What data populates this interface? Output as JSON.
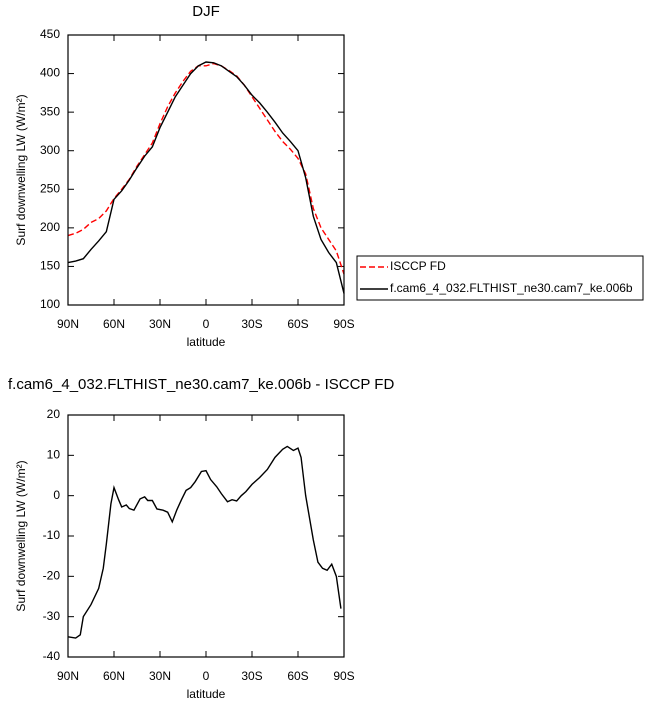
{
  "chart_data": [
    {
      "type": "line",
      "title": "DJF",
      "xlabel": "latitude",
      "ylabel": "Surf downwelling LW (W/m²)",
      "x": [
        90,
        85,
        80,
        75,
        70,
        65,
        60,
        55,
        50,
        45,
        40,
        35,
        30,
        25,
        20,
        15,
        10,
        5,
        0,
        -5,
        -10,
        -15,
        -20,
        -25,
        -30,
        -35,
        -40,
        -45,
        -50,
        -55,
        -60,
        -65,
        -70,
        -75,
        -80,
        -85,
        -90
      ],
      "series": [
        {
          "name": "ISCCP FD",
          "color": "#ff0000",
          "dash": true,
          "values": [
            190,
            193,
            198,
            207,
            212,
            222,
            238,
            250,
            263,
            280,
            295,
            310,
            335,
            357,
            375,
            390,
            403,
            410,
            410,
            413,
            410,
            404,
            397,
            385,
            370,
            355,
            340,
            325,
            312,
            302,
            290,
            270,
            225,
            200,
            185,
            170,
            140
          ]
        },
        {
          "name": "f.cam6_4_032.FLTHIST_ne30.cam7_ke.006b",
          "color": "#000000",
          "dash": false,
          "values": [
            155,
            157,
            160,
            172,
            183,
            195,
            237,
            248,
            262,
            278,
            293,
            305,
            330,
            350,
            370,
            385,
            400,
            410,
            415,
            414,
            410,
            403,
            396,
            385,
            372,
            362,
            350,
            337,
            323,
            312,
            300,
            265,
            215,
            185,
            168,
            155,
            115
          ]
        }
      ],
      "xlim": [
        90,
        -90
      ],
      "xticks": [
        {
          "value": 90,
          "label": "90N"
        },
        {
          "value": 60,
          "label": "60N"
        },
        {
          "value": 30,
          "label": "30N"
        },
        0,
        {
          "value": -30,
          "label": "30S"
        },
        {
          "value": -60,
          "label": "60S"
        },
        {
          "value": -90,
          "label": "90S"
        }
      ],
      "ylim": [
        100,
        450
      ],
      "yticks": [
        100,
        150,
        200,
        250,
        300,
        350,
        400,
        450
      ],
      "legend": "right"
    },
    {
      "type": "line",
      "title": "f.cam6_4_032.FLTHIST_ne30.cam7_ke.006b - ISCCP FD",
      "xlabel": "latitude",
      "ylabel": "Surf downwelling LW (W/m²)",
      "x": [
        90,
        85,
        82,
        80,
        75,
        70,
        67,
        65,
        62,
        60,
        57,
        55,
        52,
        50,
        47,
        43,
        40,
        38,
        35,
        32,
        28,
        25,
        22,
        19,
        16,
        13,
        10,
        7,
        3,
        0,
        -3,
        -7,
        -10,
        -14,
        -17,
        -20,
        -23,
        -26,
        -30,
        -35,
        -40,
        -45,
        -50,
        -53,
        -57,
        -60,
        -62,
        -65,
        -70,
        -73,
        -76,
        -79,
        -82,
        -85,
        -88
      ],
      "series": [
        {
          "name": "f.cam6_4_032.FLTHIST_ne30.cam7_ke.006b - ISCCP FD",
          "color": "#000000",
          "dash": false,
          "values": [
            -35,
            -35.3,
            -34.5,
            -30,
            -27,
            -23,
            -18,
            -12,
            -2,
            2,
            -1,
            -2.8,
            -2.3,
            -3.2,
            -3.6,
            -0.8,
            -0.3,
            -1.2,
            -1.2,
            -3.3,
            -3.6,
            -4.1,
            -6.5,
            -3.5,
            -1,
            1.3,
            2,
            3.5,
            6,
            6.2,
            4,
            2.2,
            0.5,
            -1.5,
            -1,
            -1.3,
            0,
            1,
            2.8,
            4.5,
            6.5,
            9.5,
            11.5,
            12.2,
            11.2,
            11.8,
            9.5,
            0,
            -11,
            -16.5,
            -18,
            -18.5,
            -17,
            -20,
            -28
          ]
        }
      ],
      "xlim": [
        90,
        -90
      ],
      "xticks": [
        {
          "value": 90,
          "label": "90N"
        },
        {
          "value": 60,
          "label": "60N"
        },
        {
          "value": 30,
          "label": "30N"
        },
        0,
        {
          "value": -30,
          "label": "30S"
        },
        {
          "value": -60,
          "label": "60S"
        },
        {
          "value": -90,
          "label": "90S"
        }
      ],
      "ylim": [
        -40,
        20
      ],
      "yticks": [
        -40,
        -30,
        -20,
        -10,
        0,
        10,
        20
      ]
    }
  ]
}
